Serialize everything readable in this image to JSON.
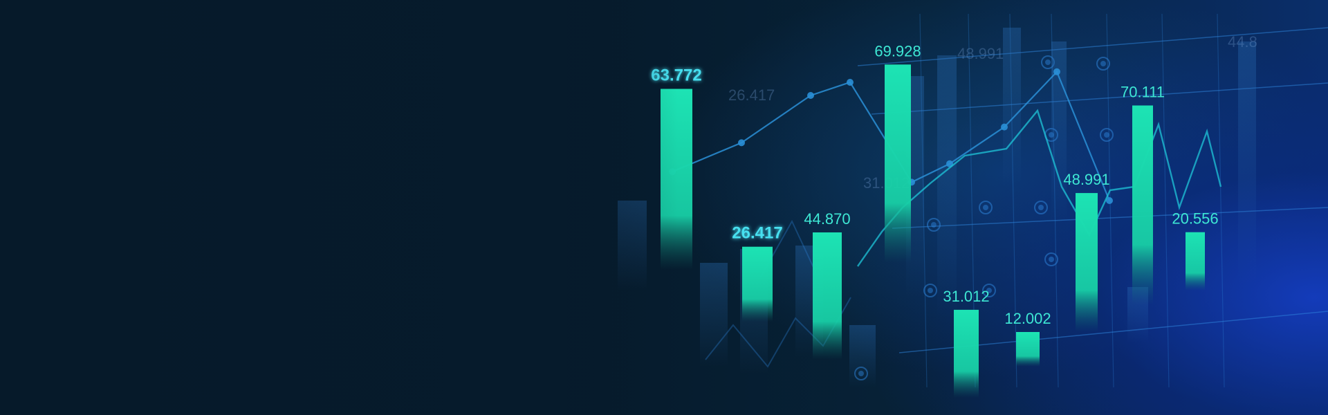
{
  "colors": {
    "background": "#071a2b",
    "bar": "#1de3b4",
    "label": "#3ee8d4",
    "line": "#2a8fd6",
    "grid": "#2f88e0",
    "glow_blue": "#1a4cc8"
  },
  "chart_data": {
    "type": "bar",
    "categories": [
      "63.772",
      "26.417",
      "44.870",
      "69.928",
      "31.012",
      "12.002",
      "48.991",
      "70.111",
      "20.556"
    ],
    "values": [
      63.772,
      26.417,
      44.87,
      69.928,
      31.012,
      12.002,
      48.991,
      70.111,
      20.556
    ],
    "overlay_line": {
      "values": [
        41,
        52,
        70,
        75,
        37,
        44,
        58,
        79,
        30
      ]
    },
    "ghost_labels": [
      "26.417",
      "48.991",
      "31.012",
      "44.8"
    ],
    "grid": true,
    "legend": "none"
  }
}
